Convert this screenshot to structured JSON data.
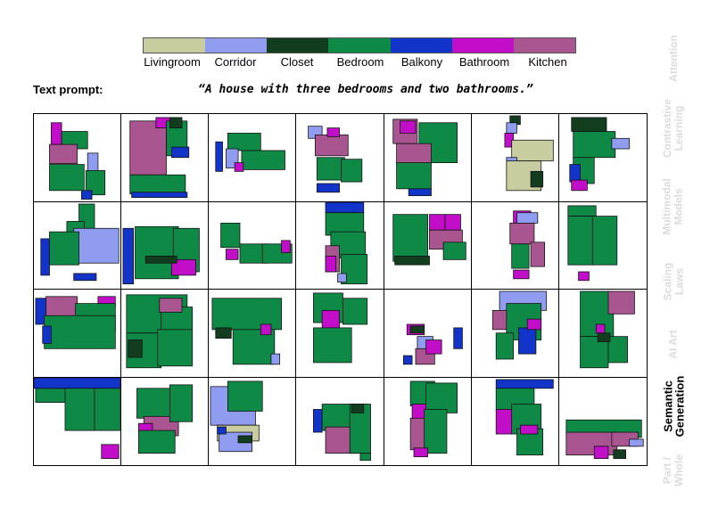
{
  "legend": {
    "items": [
      {
        "label": "Livingroom",
        "color": "#c9cc9f"
      },
      {
        "label": "Corridor",
        "color": "#8f9cf0"
      },
      {
        "label": "Closet",
        "color": "#123d1e"
      },
      {
        "label": "Bedroom",
        "color": "#0e8a46"
      },
      {
        "label": "Balkony",
        "color": "#1234c8"
      },
      {
        "label": "Bathroom",
        "color": "#c20dc9"
      },
      {
        "label": "Kitchen",
        "color": "#a9558f"
      }
    ]
  },
  "prompt": {
    "label": "Text prompt:",
    "text": "“A house with three bedrooms and two bathrooms.”"
  },
  "sidebar": {
    "tabs": [
      {
        "label": "Attention",
        "active": false
      },
      {
        "label": "Contrastive\nLearning",
        "active": false
      },
      {
        "label": "Multimodal\nModels",
        "active": false
      },
      {
        "label": "Scaling\nLaws",
        "active": false
      },
      {
        "label": "AI Art",
        "active": false
      },
      {
        "label": "Semantic\nGeneration",
        "active": true
      },
      {
        "label": "Part /\nWhole",
        "active": false
      }
    ]
  }
}
